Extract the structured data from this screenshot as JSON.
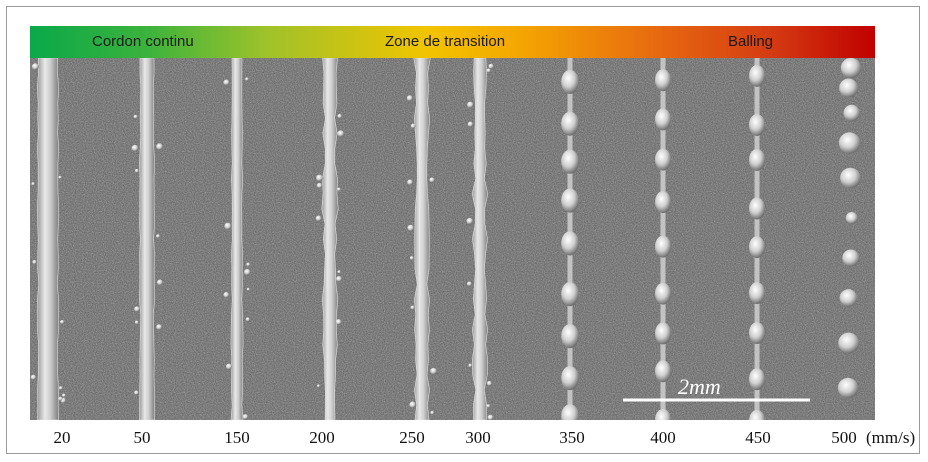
{
  "figure": {
    "regime_bar": {
      "labels": [
        "Cordon continu",
        "Zone de transition",
        "Balling"
      ]
    },
    "scale_bar": {
      "label": "2mm"
    },
    "speeds": [
      "20",
      "50",
      "150",
      "200",
      "250",
      "300",
      "350",
      "400",
      "450",
      "500"
    ],
    "unit": "(mm/s)"
  }
}
